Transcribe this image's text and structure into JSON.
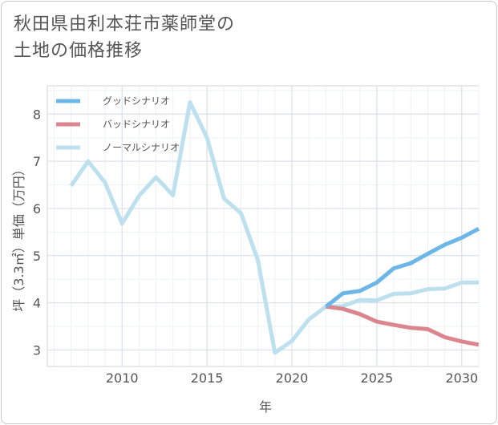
{
  "title_line1": "秋田県由利本荘市薬師堂の",
  "title_line2": "土地の価格推移",
  "chart_data": {
    "type": "line",
    "title": "秋田県由利本荘市薬師堂の土地の価格推移",
    "xlabel": "年",
    "ylabel": "坪（3.3㎡）単価（万円）",
    "xlim": [
      2005.6,
      2031.0
    ],
    "ylim": [
      2.65,
      8.6
    ],
    "x_ticks": [
      2010,
      2015,
      2020,
      2025,
      2030
    ],
    "y_ticks": [
      3,
      4,
      5,
      6,
      7,
      8
    ],
    "grid": true,
    "legend_position": "top-left",
    "series": [
      {
        "name": "グッドシナリオ",
        "color": "#6cb6e8",
        "x": [
          2022,
          2023,
          2024,
          2025,
          2026,
          2027,
          2028,
          2029,
          2030,
          2031
        ],
        "values": [
          3.92,
          4.2,
          4.25,
          4.43,
          4.73,
          4.84,
          5.04,
          5.23,
          5.38,
          5.57
        ]
      },
      {
        "name": "バッドシナリオ",
        "color": "#db868f",
        "x": [
          2022,
          2023,
          2024,
          2025,
          2026,
          2027,
          2028,
          2029,
          2030,
          2031
        ],
        "values": [
          3.92,
          3.87,
          3.76,
          3.6,
          3.53,
          3.47,
          3.44,
          3.27,
          3.18,
          3.11
        ]
      },
      {
        "name": "ノーマルシナリオ",
        "color": "#bde0ee",
        "x": [
          2007,
          2008,
          2009,
          2010,
          2011,
          2012,
          2013,
          2014,
          2015,
          2016,
          2017,
          2018,
          2019,
          2020,
          2021,
          2022,
          2023,
          2024,
          2025,
          2026,
          2027,
          2028,
          2029,
          2030,
          2031
        ],
        "values": [
          6.48,
          7.0,
          6.55,
          5.68,
          6.27,
          6.66,
          6.28,
          8.25,
          7.5,
          6.21,
          5.9,
          4.9,
          2.94,
          3.19,
          3.65,
          3.92,
          3.93,
          4.06,
          4.05,
          4.19,
          4.2,
          4.29,
          4.3,
          4.43,
          4.43
        ]
      }
    ]
  }
}
